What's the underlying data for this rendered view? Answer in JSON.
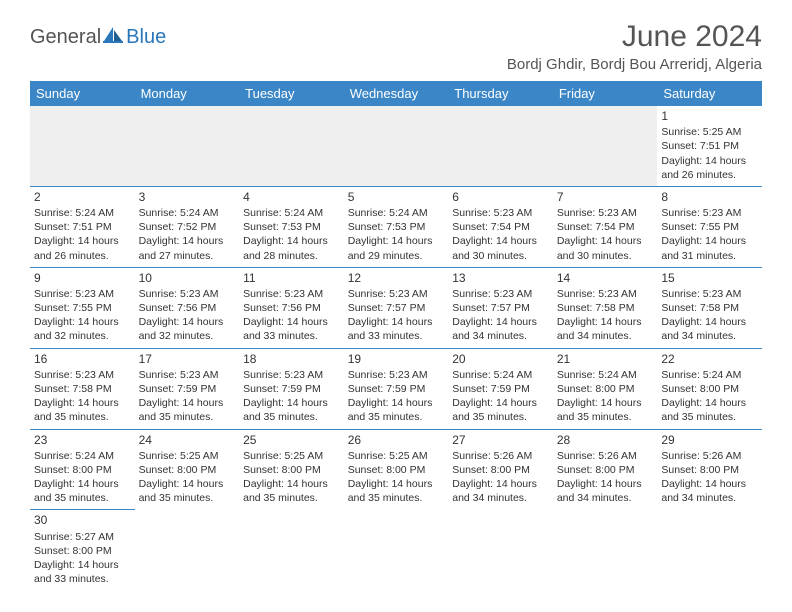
{
  "logo": {
    "part1": "General",
    "part2": "Blue"
  },
  "title": "June 2024",
  "location": "Bordj Ghdir, Bordj Bou Arreridj, Algeria",
  "colors": {
    "header_bg": "#3b86c6",
    "header_text": "#ffffff",
    "border": "#3b86c6",
    "empty_bg": "#efefef",
    "text": "#333333",
    "logo_gray": "#545454",
    "logo_blue": "#2a78bb"
  },
  "weekdays": [
    "Sunday",
    "Monday",
    "Tuesday",
    "Wednesday",
    "Thursday",
    "Friday",
    "Saturday"
  ],
  "weeks": [
    [
      null,
      null,
      null,
      null,
      null,
      null,
      {
        "n": "1",
        "sr": "Sunrise: 5:25 AM",
        "ss": "Sunset: 7:51 PM",
        "d1": "Daylight: 14 hours",
        "d2": "and 26 minutes."
      }
    ],
    [
      {
        "n": "2",
        "sr": "Sunrise: 5:24 AM",
        "ss": "Sunset: 7:51 PM",
        "d1": "Daylight: 14 hours",
        "d2": "and 26 minutes."
      },
      {
        "n": "3",
        "sr": "Sunrise: 5:24 AM",
        "ss": "Sunset: 7:52 PM",
        "d1": "Daylight: 14 hours",
        "d2": "and 27 minutes."
      },
      {
        "n": "4",
        "sr": "Sunrise: 5:24 AM",
        "ss": "Sunset: 7:53 PM",
        "d1": "Daylight: 14 hours",
        "d2": "and 28 minutes."
      },
      {
        "n": "5",
        "sr": "Sunrise: 5:24 AM",
        "ss": "Sunset: 7:53 PM",
        "d1": "Daylight: 14 hours",
        "d2": "and 29 minutes."
      },
      {
        "n": "6",
        "sr": "Sunrise: 5:23 AM",
        "ss": "Sunset: 7:54 PM",
        "d1": "Daylight: 14 hours",
        "d2": "and 30 minutes."
      },
      {
        "n": "7",
        "sr": "Sunrise: 5:23 AM",
        "ss": "Sunset: 7:54 PM",
        "d1": "Daylight: 14 hours",
        "d2": "and 30 minutes."
      },
      {
        "n": "8",
        "sr": "Sunrise: 5:23 AM",
        "ss": "Sunset: 7:55 PM",
        "d1": "Daylight: 14 hours",
        "d2": "and 31 minutes."
      }
    ],
    [
      {
        "n": "9",
        "sr": "Sunrise: 5:23 AM",
        "ss": "Sunset: 7:55 PM",
        "d1": "Daylight: 14 hours",
        "d2": "and 32 minutes."
      },
      {
        "n": "10",
        "sr": "Sunrise: 5:23 AM",
        "ss": "Sunset: 7:56 PM",
        "d1": "Daylight: 14 hours",
        "d2": "and 32 minutes."
      },
      {
        "n": "11",
        "sr": "Sunrise: 5:23 AM",
        "ss": "Sunset: 7:56 PM",
        "d1": "Daylight: 14 hours",
        "d2": "and 33 minutes."
      },
      {
        "n": "12",
        "sr": "Sunrise: 5:23 AM",
        "ss": "Sunset: 7:57 PM",
        "d1": "Daylight: 14 hours",
        "d2": "and 33 minutes."
      },
      {
        "n": "13",
        "sr": "Sunrise: 5:23 AM",
        "ss": "Sunset: 7:57 PM",
        "d1": "Daylight: 14 hours",
        "d2": "and 34 minutes."
      },
      {
        "n": "14",
        "sr": "Sunrise: 5:23 AM",
        "ss": "Sunset: 7:58 PM",
        "d1": "Daylight: 14 hours",
        "d2": "and 34 minutes."
      },
      {
        "n": "15",
        "sr": "Sunrise: 5:23 AM",
        "ss": "Sunset: 7:58 PM",
        "d1": "Daylight: 14 hours",
        "d2": "and 34 minutes."
      }
    ],
    [
      {
        "n": "16",
        "sr": "Sunrise: 5:23 AM",
        "ss": "Sunset: 7:58 PM",
        "d1": "Daylight: 14 hours",
        "d2": "and 35 minutes."
      },
      {
        "n": "17",
        "sr": "Sunrise: 5:23 AM",
        "ss": "Sunset: 7:59 PM",
        "d1": "Daylight: 14 hours",
        "d2": "and 35 minutes."
      },
      {
        "n": "18",
        "sr": "Sunrise: 5:23 AM",
        "ss": "Sunset: 7:59 PM",
        "d1": "Daylight: 14 hours",
        "d2": "and 35 minutes."
      },
      {
        "n": "19",
        "sr": "Sunrise: 5:23 AM",
        "ss": "Sunset: 7:59 PM",
        "d1": "Daylight: 14 hours",
        "d2": "and 35 minutes."
      },
      {
        "n": "20",
        "sr": "Sunrise: 5:24 AM",
        "ss": "Sunset: 7:59 PM",
        "d1": "Daylight: 14 hours",
        "d2": "and 35 minutes."
      },
      {
        "n": "21",
        "sr": "Sunrise: 5:24 AM",
        "ss": "Sunset: 8:00 PM",
        "d1": "Daylight: 14 hours",
        "d2": "and 35 minutes."
      },
      {
        "n": "22",
        "sr": "Sunrise: 5:24 AM",
        "ss": "Sunset: 8:00 PM",
        "d1": "Daylight: 14 hours",
        "d2": "and 35 minutes."
      }
    ],
    [
      {
        "n": "23",
        "sr": "Sunrise: 5:24 AM",
        "ss": "Sunset: 8:00 PM",
        "d1": "Daylight: 14 hours",
        "d2": "and 35 minutes."
      },
      {
        "n": "24",
        "sr": "Sunrise: 5:25 AM",
        "ss": "Sunset: 8:00 PM",
        "d1": "Daylight: 14 hours",
        "d2": "and 35 minutes."
      },
      {
        "n": "25",
        "sr": "Sunrise: 5:25 AM",
        "ss": "Sunset: 8:00 PM",
        "d1": "Daylight: 14 hours",
        "d2": "and 35 minutes."
      },
      {
        "n": "26",
        "sr": "Sunrise: 5:25 AM",
        "ss": "Sunset: 8:00 PM",
        "d1": "Daylight: 14 hours",
        "d2": "and 35 minutes."
      },
      {
        "n": "27",
        "sr": "Sunrise: 5:26 AM",
        "ss": "Sunset: 8:00 PM",
        "d1": "Daylight: 14 hours",
        "d2": "and 34 minutes."
      },
      {
        "n": "28",
        "sr": "Sunrise: 5:26 AM",
        "ss": "Sunset: 8:00 PM",
        "d1": "Daylight: 14 hours",
        "d2": "and 34 minutes."
      },
      {
        "n": "29",
        "sr": "Sunrise: 5:26 AM",
        "ss": "Sunset: 8:00 PM",
        "d1": "Daylight: 14 hours",
        "d2": "and 34 minutes."
      }
    ],
    [
      {
        "n": "30",
        "sr": "Sunrise: 5:27 AM",
        "ss": "Sunset: 8:00 PM",
        "d1": "Daylight: 14 hours",
        "d2": "and 33 minutes."
      },
      null,
      null,
      null,
      null,
      null,
      null
    ]
  ]
}
